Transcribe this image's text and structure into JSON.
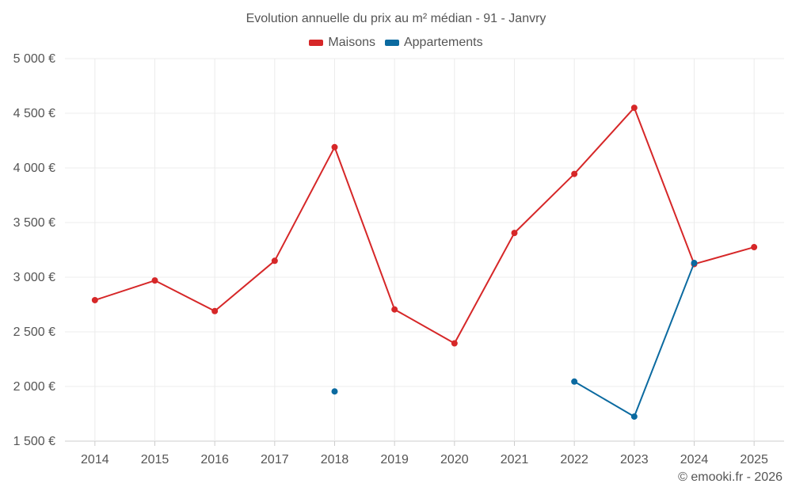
{
  "colors": {
    "maisons": "#d62728",
    "appartements": "#0b6aa0",
    "grid": "#ececec",
    "axis": "#cccccc"
  },
  "chart_data": {
    "type": "line",
    "title": "Evolution annuelle du prix au m² médian - 91 - Janvry",
    "categories": [
      "2014",
      "2015",
      "2016",
      "2017",
      "2018",
      "2019",
      "2020",
      "2021",
      "2022",
      "2023",
      "2024",
      "2025"
    ],
    "series": [
      {
        "name": "Maisons",
        "color_key": "maisons",
        "values": [
          2790,
          2970,
          2690,
          3150,
          4190,
          2705,
          2395,
          3405,
          3945,
          4550,
          3120,
          3275
        ]
      },
      {
        "name": "Appartements",
        "color_key": "appartements",
        "values": [
          null,
          null,
          null,
          null,
          1955,
          null,
          null,
          null,
          2045,
          1725,
          3130,
          null
        ]
      }
    ],
    "ylim": [
      1500,
      5000
    ],
    "yticks": [
      1500,
      2000,
      2500,
      3000,
      3500,
      4000,
      4500,
      5000
    ],
    "ytick_labels": [
      "1 500 €",
      "2 000 €",
      "2 500 €",
      "3 000 €",
      "3 500 €",
      "4 000 €",
      "4 500 €",
      "5 000 €"
    ],
    "grid": true,
    "legend_position": "top-center"
  },
  "credit": "© emooki.fr - 2026"
}
